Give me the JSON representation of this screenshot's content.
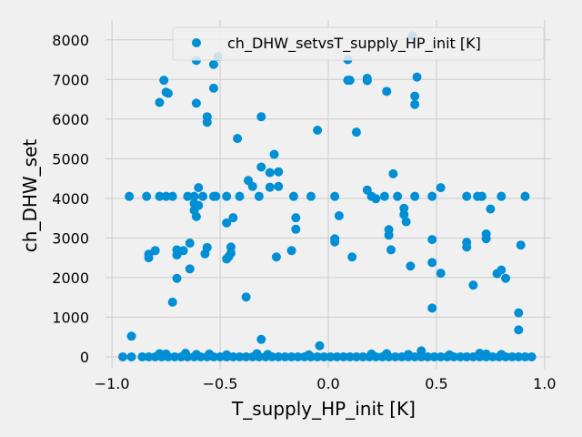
{
  "chart_data": {
    "type": "scatter",
    "title": "",
    "xlabel": "T_supply_HP_init [K]",
    "ylabel": "ch_DHW_set",
    "xlim": [
      -1.03,
      1.03
    ],
    "ylim": [
      -300,
      8500
    ],
    "xticks": [
      -1.0,
      -0.5,
      0.0,
      0.5,
      1.0
    ],
    "xtick_labels": [
      "−1.0",
      "−0.5",
      "0.0",
      "0.5",
      "1.0"
    ],
    "yticks": [
      0,
      1000,
      2000,
      3000,
      4000,
      5000,
      6000,
      7000,
      8000
    ],
    "ytick_labels": [
      "0",
      "1000",
      "2000",
      "3000",
      "4000",
      "5000",
      "6000",
      "7000",
      "8000"
    ],
    "grid": true,
    "legend_position": "top-right",
    "marker_color": "#008fd5",
    "series": [
      {
        "name": "ch_DHW_setvsT_supply_HP_init [K]",
        "points": [
          [
            -0.92,
            4050
          ],
          [
            -0.84,
            4050
          ],
          [
            -0.78,
            4050
          ],
          [
            -0.75,
            4050
          ],
          [
            -0.72,
            4050
          ],
          [
            -0.65,
            4050
          ],
          [
            -0.62,
            4050
          ],
          [
            -0.58,
            4050
          ],
          [
            -0.53,
            4050
          ],
          [
            -0.52,
            4050
          ],
          [
            -0.47,
            4050
          ],
          [
            -0.41,
            4050
          ],
          [
            -0.32,
            4050
          ],
          [
            -0.16,
            4050
          ],
          [
            -0.08,
            4050
          ],
          [
            0.03,
            4050
          ],
          [
            0.2,
            4050
          ],
          [
            0.26,
            4050
          ],
          [
            0.32,
            4050
          ],
          [
            0.4,
            4050
          ],
          [
            0.48,
            4050
          ],
          [
            0.64,
            4050
          ],
          [
            0.69,
            4050
          ],
          [
            0.71,
            4050
          ],
          [
            0.8,
            4050
          ],
          [
            0.91,
            4050
          ],
          [
            -0.51,
            7580
          ],
          [
            -0.61,
            7480
          ],
          [
            -0.53,
            7380
          ],
          [
            -0.76,
            6980
          ],
          [
            -0.75,
            6680
          ],
          [
            -0.74,
            6650
          ],
          [
            -0.78,
            6420
          ],
          [
            -0.61,
            6400
          ],
          [
            -0.56,
            6060
          ],
          [
            -0.56,
            5920
          ],
          [
            -0.53,
            6780
          ],
          [
            -0.31,
            6060
          ],
          [
            -0.42,
            5510
          ],
          [
            -0.25,
            5110
          ],
          [
            -0.05,
            5720
          ],
          [
            0.09,
            7500
          ],
          [
            0.09,
            6980
          ],
          [
            0.1,
            6980
          ],
          [
            0.18,
            7030
          ],
          [
            0.18,
            6970
          ],
          [
            0.13,
            5670
          ],
          [
            0.27,
            6700
          ],
          [
            0.39,
            8100
          ],
          [
            0.41,
            7060
          ],
          [
            0.4,
            6580
          ],
          [
            0.4,
            6370
          ],
          [
            -0.6,
            4270
          ],
          [
            -0.62,
            3870
          ],
          [
            -0.62,
            3700
          ],
          [
            -0.6,
            3820
          ],
          [
            -0.61,
            3540
          ],
          [
            -0.37,
            4450
          ],
          [
            -0.35,
            4300
          ],
          [
            -0.31,
            4790
          ],
          [
            -0.27,
            4650
          ],
          [
            -0.23,
            4670
          ],
          [
            -0.27,
            4280
          ],
          [
            -0.23,
            4300
          ],
          [
            -0.15,
            3510
          ],
          [
            -0.15,
            3220
          ],
          [
            0.05,
            3560
          ],
          [
            0.03,
            2980
          ],
          [
            0.03,
            2900
          ],
          [
            0.18,
            4210
          ],
          [
            0.22,
            3990
          ],
          [
            0.3,
            4620
          ],
          [
            0.35,
            3750
          ],
          [
            0.35,
            3590
          ],
          [
            0.36,
            3410
          ],
          [
            0.28,
            3210
          ],
          [
            0.28,
            3070
          ],
          [
            0.29,
            2700
          ],
          [
            0.48,
            2960
          ],
          [
            0.48,
            2380
          ],
          [
            0.52,
            4270
          ],
          [
            0.52,
            2110
          ],
          [
            0.64,
            2890
          ],
          [
            0.64,
            2770
          ],
          [
            0.73,
            3100
          ],
          [
            0.73,
            2980
          ],
          [
            0.75,
            3730
          ],
          [
            -0.83,
            2590
          ],
          [
            -0.83,
            2500
          ],
          [
            -0.8,
            2680
          ],
          [
            -0.7,
            2700
          ],
          [
            -0.7,
            2570
          ],
          [
            -0.7,
            1980
          ],
          [
            -0.67,
            2680
          ],
          [
            -0.64,
            2870
          ],
          [
            -0.64,
            2220
          ],
          [
            -0.57,
            2600
          ],
          [
            -0.56,
            2760
          ],
          [
            -0.47,
            3380
          ],
          [
            -0.44,
            3510
          ],
          [
            -0.45,
            2770
          ],
          [
            -0.45,
            2620
          ],
          [
            -0.46,
            2530
          ],
          [
            -0.47,
            2470
          ],
          [
            -0.24,
            2520
          ],
          [
            -0.17,
            2680
          ],
          [
            0.11,
            2520
          ],
          [
            0.38,
            2290
          ],
          [
            0.67,
            1810
          ],
          [
            0.48,
            1230
          ],
          [
            0.78,
            2100
          ],
          [
            0.8,
            2190
          ],
          [
            0.82,
            1980
          ],
          [
            0.89,
            2820
          ],
          [
            0.88,
            1110
          ],
          [
            0.88,
            680
          ],
          [
            -0.72,
            1380
          ],
          [
            -0.38,
            1510
          ],
          [
            -0.31,
            440
          ],
          [
            -0.04,
            280
          ],
          [
            -0.91,
            520
          ],
          [
            0.43,
            150
          ],
          [
            -0.95,
            0
          ],
          [
            -0.91,
            0
          ],
          [
            -0.86,
            0
          ],
          [
            -0.83,
            0
          ],
          [
            -0.8,
            0
          ],
          [
            -0.77,
            0
          ],
          [
            -0.74,
            0
          ],
          [
            -0.71,
            0
          ],
          [
            -0.68,
            0
          ],
          [
            -0.65,
            0
          ],
          [
            -0.62,
            0
          ],
          [
            -0.59,
            0
          ],
          [
            -0.56,
            0
          ],
          [
            -0.53,
            0
          ],
          [
            -0.5,
            0
          ],
          [
            -0.47,
            0
          ],
          [
            -0.44,
            0
          ],
          [
            -0.41,
            0
          ],
          [
            -0.38,
            0
          ],
          [
            -0.35,
            0
          ],
          [
            -0.32,
            0
          ],
          [
            -0.29,
            0
          ],
          [
            -0.26,
            0
          ],
          [
            -0.23,
            0
          ],
          [
            -0.2,
            0
          ],
          [
            -0.17,
            0
          ],
          [
            -0.14,
            0
          ],
          [
            -0.11,
            0
          ],
          [
            -0.08,
            0
          ],
          [
            -0.05,
            0
          ],
          [
            -0.02,
            0
          ],
          [
            0.01,
            0
          ],
          [
            0.04,
            0
          ],
          [
            0.07,
            0
          ],
          [
            0.1,
            0
          ],
          [
            0.13,
            0
          ],
          [
            0.16,
            0
          ],
          [
            0.19,
            0
          ],
          [
            0.22,
            0
          ],
          [
            0.25,
            0
          ],
          [
            0.28,
            0
          ],
          [
            0.31,
            0
          ],
          [
            0.34,
            0
          ],
          [
            0.37,
            0
          ],
          [
            0.4,
            0
          ],
          [
            0.43,
            0
          ],
          [
            0.46,
            0
          ],
          [
            0.49,
            0
          ],
          [
            0.52,
            0
          ],
          [
            0.55,
            0
          ],
          [
            0.58,
            0
          ],
          [
            0.61,
            0
          ],
          [
            0.64,
            0
          ],
          [
            0.67,
            0
          ],
          [
            0.7,
            0
          ],
          [
            0.73,
            0
          ],
          [
            0.76,
            0
          ],
          [
            0.79,
            0
          ],
          [
            0.82,
            0
          ],
          [
            0.85,
            0
          ],
          [
            0.88,
            0
          ],
          [
            0.91,
            0
          ],
          [
            0.94,
            0
          ],
          [
            -0.78,
            80
          ],
          [
            -0.75,
            70
          ],
          [
            -0.66,
            90
          ],
          [
            -0.61,
            60
          ],
          [
            -0.55,
            70
          ],
          [
            -0.47,
            50
          ],
          [
            -0.33,
            80
          ],
          [
            -0.28,
            60
          ],
          [
            -0.09,
            50
          ],
          [
            0.2,
            70
          ],
          [
            0.27,
            80
          ],
          [
            0.37,
            60
          ],
          [
            0.56,
            50
          ],
          [
            0.7,
            90
          ],
          [
            0.73,
            70
          ],
          [
            0.8,
            60
          ]
        ]
      }
    ]
  }
}
